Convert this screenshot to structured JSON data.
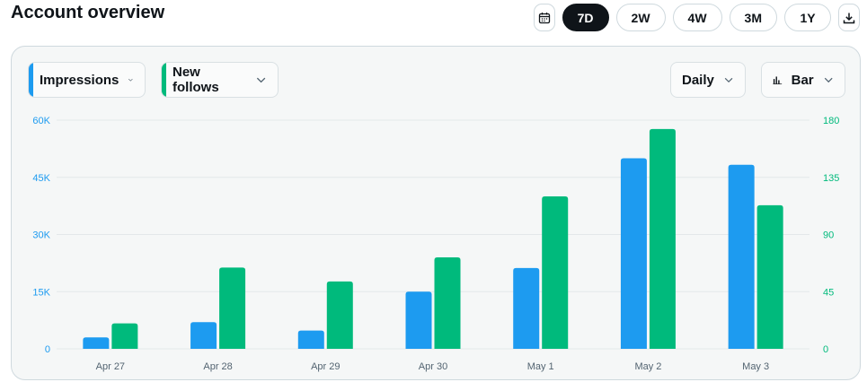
{
  "header": {
    "title": "Account overview"
  },
  "range_selector": {
    "options": [
      "7D",
      "2W",
      "4W",
      "3M",
      "1Y"
    ],
    "selected": "7D",
    "calendar_icon": "calendar-icon",
    "download_icon": "download-icon"
  },
  "controls": {
    "metric_1": {
      "label": "Impressions",
      "color": "#1d9bf0"
    },
    "metric_2": {
      "label": "New follows",
      "color": "#00ba7c"
    },
    "interval": {
      "label": "Daily"
    },
    "chart_type": {
      "label": "Bar",
      "icon": "bar-chart-icon"
    }
  },
  "chart_data": {
    "type": "bar",
    "categories": [
      "Apr 27",
      "Apr 28",
      "Apr 29",
      "Apr 30",
      "May 1",
      "May 2",
      "May 3"
    ],
    "series": [
      {
        "name": "Impressions",
        "axis": "left",
        "color": "#1d9bf0",
        "values": [
          3000,
          7000,
          4800,
          15000,
          21200,
          50000,
          48300
        ]
      },
      {
        "name": "New follows",
        "axis": "right",
        "color": "#00ba7c",
        "values": [
          20,
          64,
          53,
          72,
          120,
          173,
          113
        ]
      }
    ],
    "y_left": {
      "ylim": [
        0,
        60000
      ],
      "ticks": [
        "0",
        "15K",
        "30K",
        "45K",
        "60K"
      ],
      "tick_values": [
        0,
        15000,
        30000,
        45000,
        60000
      ]
    },
    "y_right": {
      "ylim": [
        0,
        180
      ],
      "ticks": [
        "0",
        "45",
        "90",
        "135",
        "180"
      ],
      "tick_values": [
        0,
        45,
        90,
        135,
        180
      ]
    },
    "grid": true,
    "legend": "none"
  }
}
